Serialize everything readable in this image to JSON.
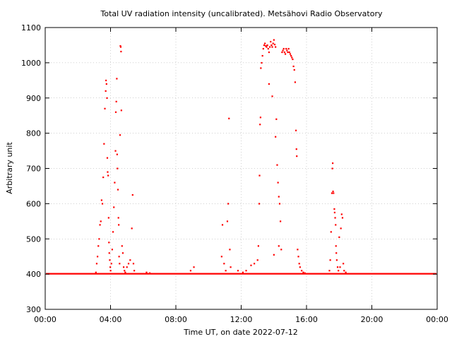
{
  "chart_data": {
    "type": "scatter",
    "title": "Total UV radiation intensity (uncalibrated). Metsähovi Radio Observatory",
    "xlabel": "Time UT, on date 2022-07-12",
    "ylabel": "Arbitrary unit",
    "x_unit": "hours UT",
    "xlim": [
      0,
      24
    ],
    "ylim": [
      300,
      1100
    ],
    "x_ticks": [
      "00:00",
      "04:00",
      "08:00",
      "12:00",
      "16:00",
      "20:00",
      "00:00"
    ],
    "y_ticks": [
      "300",
      "400",
      "500",
      "600",
      "700",
      "800",
      "900",
      "1000",
      "1100"
    ],
    "grid": true,
    "marker_color": "#ff0000",
    "baseline": 401,
    "points": [
      [
        3.1,
        405
      ],
      [
        3.15,
        430
      ],
      [
        3.2,
        450
      ],
      [
        3.25,
        480
      ],
      [
        3.3,
        500
      ],
      [
        3.35,
        540
      ],
      [
        3.4,
        550
      ],
      [
        3.45,
        610
      ],
      [
        3.5,
        600
      ],
      [
        3.55,
        675
      ],
      [
        3.6,
        770
      ],
      [
        3.65,
        870
      ],
      [
        3.7,
        920
      ],
      [
        3.72,
        950
      ],
      [
        3.75,
        940
      ],
      [
        3.78,
        900
      ],
      [
        3.8,
        730
      ],
      [
        3.82,
        690
      ],
      [
        3.85,
        680
      ],
      [
        3.88,
        560
      ],
      [
        3.9,
        490
      ],
      [
        3.92,
        460
      ],
      [
        3.95,
        440
      ],
      [
        3.98,
        420
      ],
      [
        4.0,
        410
      ],
      [
        4.05,
        430
      ],
      [
        4.1,
        470
      ],
      [
        4.15,
        520
      ],
      [
        4.2,
        590
      ],
      [
        4.25,
        660
      ],
      [
        4.3,
        750
      ],
      [
        4.32,
        860
      ],
      [
        4.35,
        890
      ],
      [
        4.38,
        955
      ],
      [
        4.4,
        740
      ],
      [
        4.42,
        700
      ],
      [
        4.45,
        640
      ],
      [
        4.48,
        560
      ],
      [
        4.5,
        540
      ],
      [
        4.52,
        450
      ],
      [
        4.55,
        430
      ],
      [
        4.58,
        795
      ],
      [
        4.6,
        1048
      ],
      [
        4.62,
        1045
      ],
      [
        4.64,
        1032
      ],
      [
        4.66,
        865
      ],
      [
        4.7,
        480
      ],
      [
        4.75,
        460
      ],
      [
        4.8,
        420
      ],
      [
        4.85,
        410
      ],
      [
        4.9,
        405
      ],
      [
        5.0,
        420
      ],
      [
        5.1,
        430
      ],
      [
        5.2,
        440
      ],
      [
        5.3,
        530
      ],
      [
        5.35,
        625
      ],
      [
        5.4,
        430
      ],
      [
        5.45,
        410
      ],
      [
        6.2,
        405
      ],
      [
        6.4,
        403
      ],
      [
        8.9,
        410
      ],
      [
        9.1,
        420
      ],
      [
        10.8,
        450
      ],
      [
        10.85,
        540
      ],
      [
        10.95,
        430
      ],
      [
        11.05,
        410
      ],
      [
        11.15,
        550
      ],
      [
        11.2,
        600
      ],
      [
        11.25,
        842
      ],
      [
        11.3,
        470
      ],
      [
        11.35,
        420
      ],
      [
        11.8,
        410
      ],
      [
        12.1,
        405
      ],
      [
        12.3,
        410
      ],
      [
        12.6,
        425
      ],
      [
        12.8,
        430
      ],
      [
        13.0,
        440
      ],
      [
        13.05,
        480
      ],
      [
        13.1,
        600
      ],
      [
        13.12,
        680
      ],
      [
        13.15,
        825
      ],
      [
        13.18,
        845
      ],
      [
        13.2,
        985
      ],
      [
        13.25,
        1000
      ],
      [
        13.3,
        1020
      ],
      [
        13.35,
        1040
      ],
      [
        13.4,
        1050
      ],
      [
        13.45,
        1055
      ],
      [
        13.5,
        1048
      ],
      [
        13.55,
        1045
      ],
      [
        13.6,
        1050
      ],
      [
        13.65,
        1040
      ],
      [
        13.7,
        940
      ],
      [
        13.75,
        1045
      ],
      [
        13.8,
        1060
      ],
      [
        13.85,
        1050
      ],
      [
        13.9,
        1045
      ],
      [
        13.95,
        1055
      ],
      [
        14.0,
        1065
      ],
      [
        14.05,
        1052
      ],
      [
        14.1,
        1045
      ],
      [
        14.15,
        840
      ],
      [
        14.2,
        710
      ],
      [
        14.25,
        660
      ],
      [
        14.3,
        620
      ],
      [
        14.35,
        600
      ],
      [
        14.4,
        550
      ],
      [
        14.45,
        470
      ],
      [
        14.5,
        1030
      ],
      [
        14.55,
        1035
      ],
      [
        14.6,
        1040
      ],
      [
        14.65,
        1030
      ],
      [
        14.7,
        1025
      ],
      [
        14.75,
        1040
      ],
      [
        14.8,
        1035
      ],
      [
        14.85,
        1030
      ],
      [
        14.9,
        1040
      ],
      [
        14.95,
        1030
      ],
      [
        15.0,
        1025
      ],
      [
        15.05,
        1020
      ],
      [
        15.1,
        1015
      ],
      [
        15.15,
        1010
      ],
      [
        15.2,
        990
      ],
      [
        15.25,
        980
      ],
      [
        15.3,
        945
      ],
      [
        15.35,
        808
      ],
      [
        15.38,
        755
      ],
      [
        15.4,
        735
      ],
      [
        15.45,
        470
      ],
      [
        15.5,
        450
      ],
      [
        15.55,
        430
      ],
      [
        15.6,
        420
      ],
      [
        15.7,
        410
      ],
      [
        15.8,
        405
      ],
      [
        15.9,
        403
      ],
      [
        14.0,
        455
      ],
      [
        14.3,
        480
      ],
      [
        13.9,
        905
      ],
      [
        14.1,
        790
      ],
      [
        13.7,
        1030
      ],
      [
        17.4,
        410
      ],
      [
        17.45,
        440
      ],
      [
        17.5,
        520
      ],
      [
        17.55,
        630
      ],
      [
        17.58,
        700
      ],
      [
        17.6,
        715
      ],
      [
        17.62,
        635
      ],
      [
        17.65,
        630
      ],
      [
        17.7,
        585
      ],
      [
        17.72,
        575
      ],
      [
        17.75,
        560
      ],
      [
        17.78,
        540
      ],
      [
        17.8,
        480
      ],
      [
        17.82,
        460
      ],
      [
        17.85,
        440
      ],
      [
        17.9,
        420
      ],
      [
        17.95,
        410
      ],
      [
        18.0,
        505
      ],
      [
        18.05,
        420
      ],
      [
        18.1,
        530
      ],
      [
        18.15,
        570
      ],
      [
        18.2,
        560
      ],
      [
        18.25,
        430
      ],
      [
        18.3,
        410
      ],
      [
        18.4,
        405
      ]
    ]
  }
}
